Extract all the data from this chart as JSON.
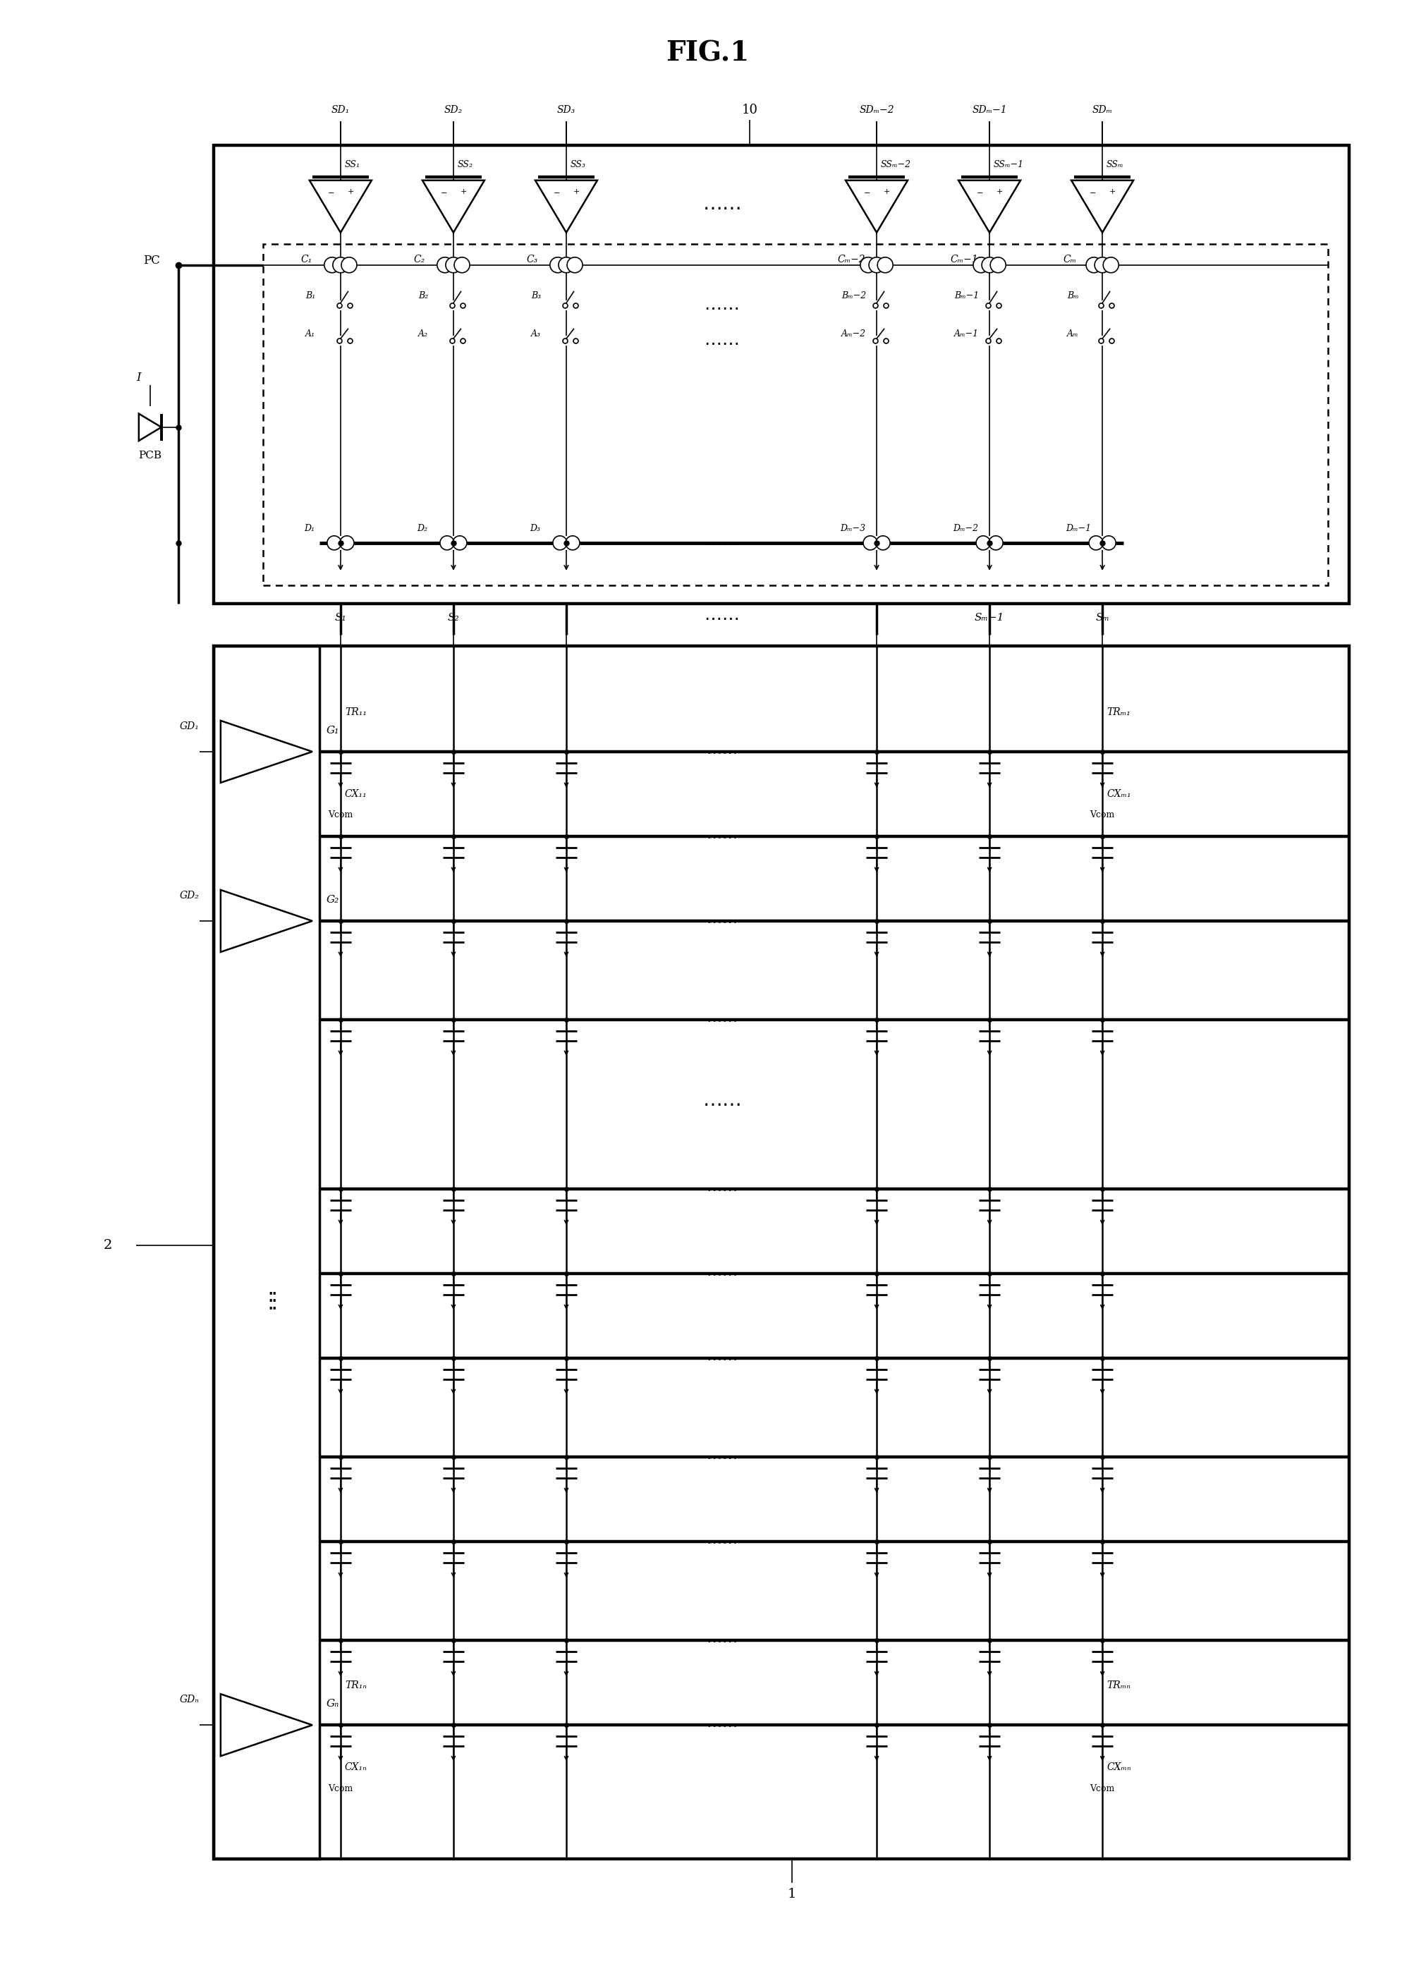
{
  "title": "FIG.1",
  "title_fontsize": 28,
  "fig_width": 20.06,
  "fig_height": 28.12,
  "bg_color": "#ffffff",
  "line_color": "#000000",
  "sd_labels": [
    "SD₁",
    "SD₂",
    "SD₃",
    "SDₘ−2",
    "SDₘ−1",
    "SDₘ"
  ],
  "ss_labels": [
    "SS₁",
    "SS₂",
    "SS₃",
    "SSₘ−2",
    "SSₘ−1",
    "SSₘ"
  ],
  "c_labels": [
    "C₁",
    "C₂",
    "C₃",
    "Cₘ−2",
    "Cₘ−1",
    "Cₘ"
  ],
  "b_labels": [
    "B₁",
    "B₂",
    "B₃",
    "Bₘ−2",
    "Bₘ−1",
    "Bₘ"
  ],
  "a_labels": [
    "A₁",
    "A₂",
    "A₃",
    "Aₘ−2",
    "Aₘ−1",
    "Aₘ"
  ],
  "d_labels": [
    "D₁",
    "D₂",
    "D₃",
    "Dₘ−3",
    "Dₘ−2",
    "Dₘ−1"
  ],
  "s_labels": [
    "S₁",
    "S₂",
    "Sₘ−1",
    "Sₘ"
  ],
  "g_labels": [
    "G₁",
    "G₂",
    "Gₙ"
  ],
  "gd_labels": [
    "GD₁",
    "GD₂",
    "GDₙ"
  ],
  "tr_labels": [
    "TR₁₁",
    "TRₘ₁",
    "TR₁ₙ",
    "TRₘₙ"
  ],
  "cx_labels": [
    "CX₁₁",
    "CXₘ₁",
    "CX₁ₙ",
    "CXₘₙ"
  ],
  "vcom_label": "Vcom",
  "pc_label": "PC",
  "pcb_label": "PCB",
  "i_label": "I",
  "label_10": "10",
  "label_1": "1",
  "label_2": "2"
}
